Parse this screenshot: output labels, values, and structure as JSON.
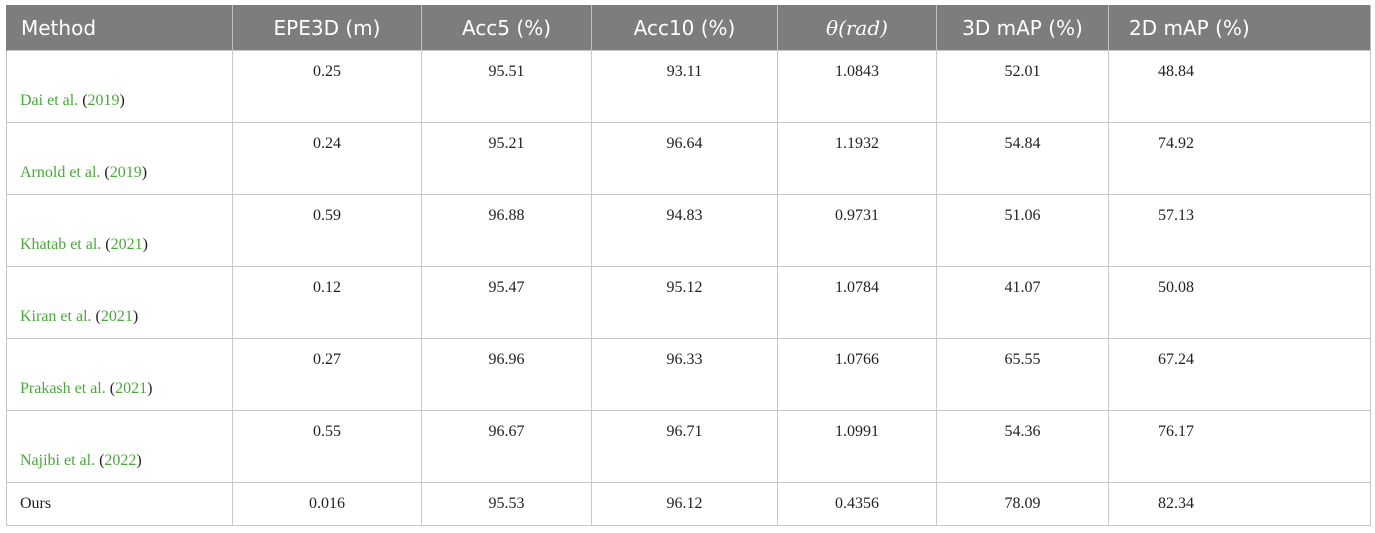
{
  "table": {
    "headers": [
      {
        "label": "Method"
      },
      {
        "label": "EPE3D (m)"
      },
      {
        "label": "Acc5 (%)"
      },
      {
        "label": "Acc10 (%)"
      },
      {
        "label": "θ(rad)"
      },
      {
        "label": "3D mAP (%)"
      },
      {
        "label": "2D mAP (%)"
      }
    ],
    "rows": [
      {
        "author": "Dai et al.",
        "year": "2019",
        "values": [
          "0.25",
          "95.51",
          "93.11",
          "1.0843",
          "52.01",
          "48.84"
        ]
      },
      {
        "author": "Arnold et al.",
        "year": "2019",
        "values": [
          "0.24",
          "95.21",
          "96.64",
          "1.1932",
          "54.84",
          "74.92"
        ]
      },
      {
        "author": "Khatab et al.",
        "year": "2021",
        "values": [
          "0.59",
          "96.88",
          "94.83",
          "0.9731",
          "51.06",
          "57.13"
        ]
      },
      {
        "author": "Kiran et al.",
        "year": "2021",
        "values": [
          "0.12",
          "95.47",
          "95.12",
          "1.0784",
          "41.07",
          "50.08"
        ]
      },
      {
        "author": "Prakash et al.",
        "year": "2021",
        "values": [
          "0.27",
          "96.96",
          "96.33",
          "1.0766",
          "65.55",
          "67.24"
        ]
      },
      {
        "author": "Najibi et al.",
        "year": "2022",
        "values": [
          "0.55",
          "96.67",
          "96.71",
          "1.0991",
          "54.36",
          "76.17"
        ]
      }
    ],
    "ours": {
      "label": "Ours",
      "values": [
        "0.016",
        "95.53",
        "96.12",
        "0.4356",
        "78.09",
        "82.34"
      ]
    }
  },
  "colors": {
    "header_bg": "#7d7d7d",
    "header_text": "#ffffff",
    "citation_link": "#4aa83a",
    "border": "#c8c8c8"
  }
}
